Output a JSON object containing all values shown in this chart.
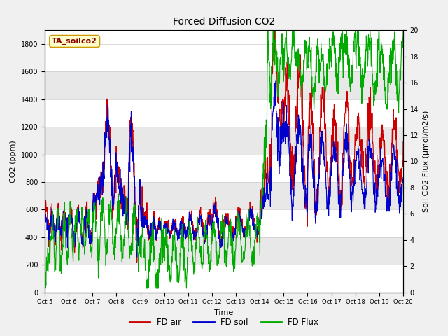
{
  "title": "Forced Diffusion CO2",
  "xlabel": "Time",
  "ylabel_left": "CO2 (ppm)",
  "ylabel_right": "Soil CO2 Flux (μmol/m2/s)",
  "annotation": "TA_soilco2",
  "ylim_left": [
    0,
    1900
  ],
  "ylim_right": [
    0,
    20
  ],
  "yticks_left": [
    0,
    200,
    400,
    600,
    800,
    1000,
    1200,
    1400,
    1600,
    1800
  ],
  "yticks_right": [
    0,
    2,
    4,
    6,
    8,
    10,
    12,
    14,
    16,
    18,
    20
  ],
  "xtick_labels": [
    "Oct 5",
    "Oct 6",
    "Oct 7",
    "Oct 8",
    "Oct 9",
    "Oct 10",
    "Oct 11",
    "Oct 12",
    "Oct 13",
    "Oct 14",
    "Oct 15",
    "Oct 16",
    "Oct 17",
    "Oct 18",
    "Oct 19",
    "Oct 20"
  ],
  "bg_color": "#f0f0f0",
  "plot_bg_color": "#ffffff",
  "line_colors": {
    "air": "#cc0000",
    "soil": "#0000cc",
    "flux": "#00aa00"
  },
  "legend_labels": [
    "FD air",
    "FD soil",
    "FD Flux"
  ],
  "grid_color": "#cccccc",
  "band_color": "#e8e8e8"
}
